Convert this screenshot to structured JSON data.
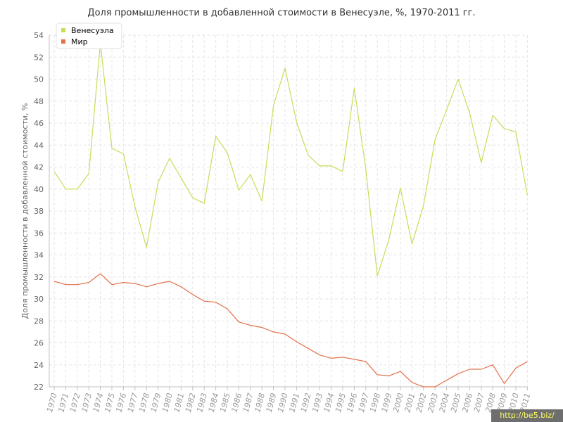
{
  "chart_data": {
    "type": "line",
    "title": "Доля промышленности в добавленной стоимости в Венесуэле, %, 1970-2011 гг.",
    "ylabel": "Доля промышленности в добавленной стоимости, %",
    "xlabel": "",
    "ylim": [
      22,
      54
    ],
    "yticks": [
      22,
      24,
      26,
      28,
      30,
      32,
      34,
      36,
      38,
      40,
      42,
      44,
      46,
      48,
      50,
      52,
      54
    ],
    "grid": true,
    "legend_position": "top-left",
    "x": [
      "1970",
      "1971",
      "1972",
      "1973",
      "1974",
      "1975",
      "1976",
      "1977",
      "1978",
      "1979",
      "1980",
      "1981",
      "1982",
      "1983",
      "1984",
      "1985",
      "1986",
      "1987",
      "1988",
      "1989",
      "1990",
      "1991",
      "1992",
      "1993",
      "1994",
      "1995",
      "1996",
      "1997",
      "1998",
      "1999",
      "2000",
      "2001",
      "2002",
      "2003",
      "2004",
      "2005",
      "2006",
      "2007",
      "2008",
      "2009",
      "2010",
      "2011"
    ],
    "series": [
      {
        "name": "Венесуэла",
        "color": "#c6de5a",
        "values": [
          41.6,
          40.0,
          40.0,
          41.4,
          53.3,
          43.7,
          43.2,
          38.4,
          34.7,
          40.6,
          42.8,
          41.0,
          39.2,
          38.7,
          44.8,
          43.3,
          39.9,
          41.3,
          38.9,
          47.6,
          51.0,
          46.1,
          43.1,
          42.1,
          42.1,
          41.6,
          49.2,
          41.8,
          32.1,
          35.4,
          40.1,
          35.0,
          38.5,
          44.5,
          47.2,
          50.0,
          46.9,
          42.4,
          46.7,
          45.5,
          45.2,
          39.4
        ]
      },
      {
        "name": "Мир",
        "color": "#e2704a",
        "values": [
          31.6,
          31.3,
          31.3,
          31.5,
          32.3,
          31.3,
          31.5,
          31.4,
          31.1,
          31.4,
          31.6,
          31.1,
          30.4,
          29.8,
          29.7,
          29.1,
          27.9,
          27.6,
          27.4,
          27.0,
          26.8,
          26.1,
          25.5,
          24.9,
          24.6,
          24.7,
          24.5,
          24.3,
          23.1,
          23.0,
          23.4,
          22.4,
          22.0,
          22.0,
          22.6,
          23.2,
          23.6,
          23.6,
          24.0,
          22.3,
          23.7,
          24.3
        ]
      }
    ]
  },
  "watermark": "http://be5.biz/"
}
